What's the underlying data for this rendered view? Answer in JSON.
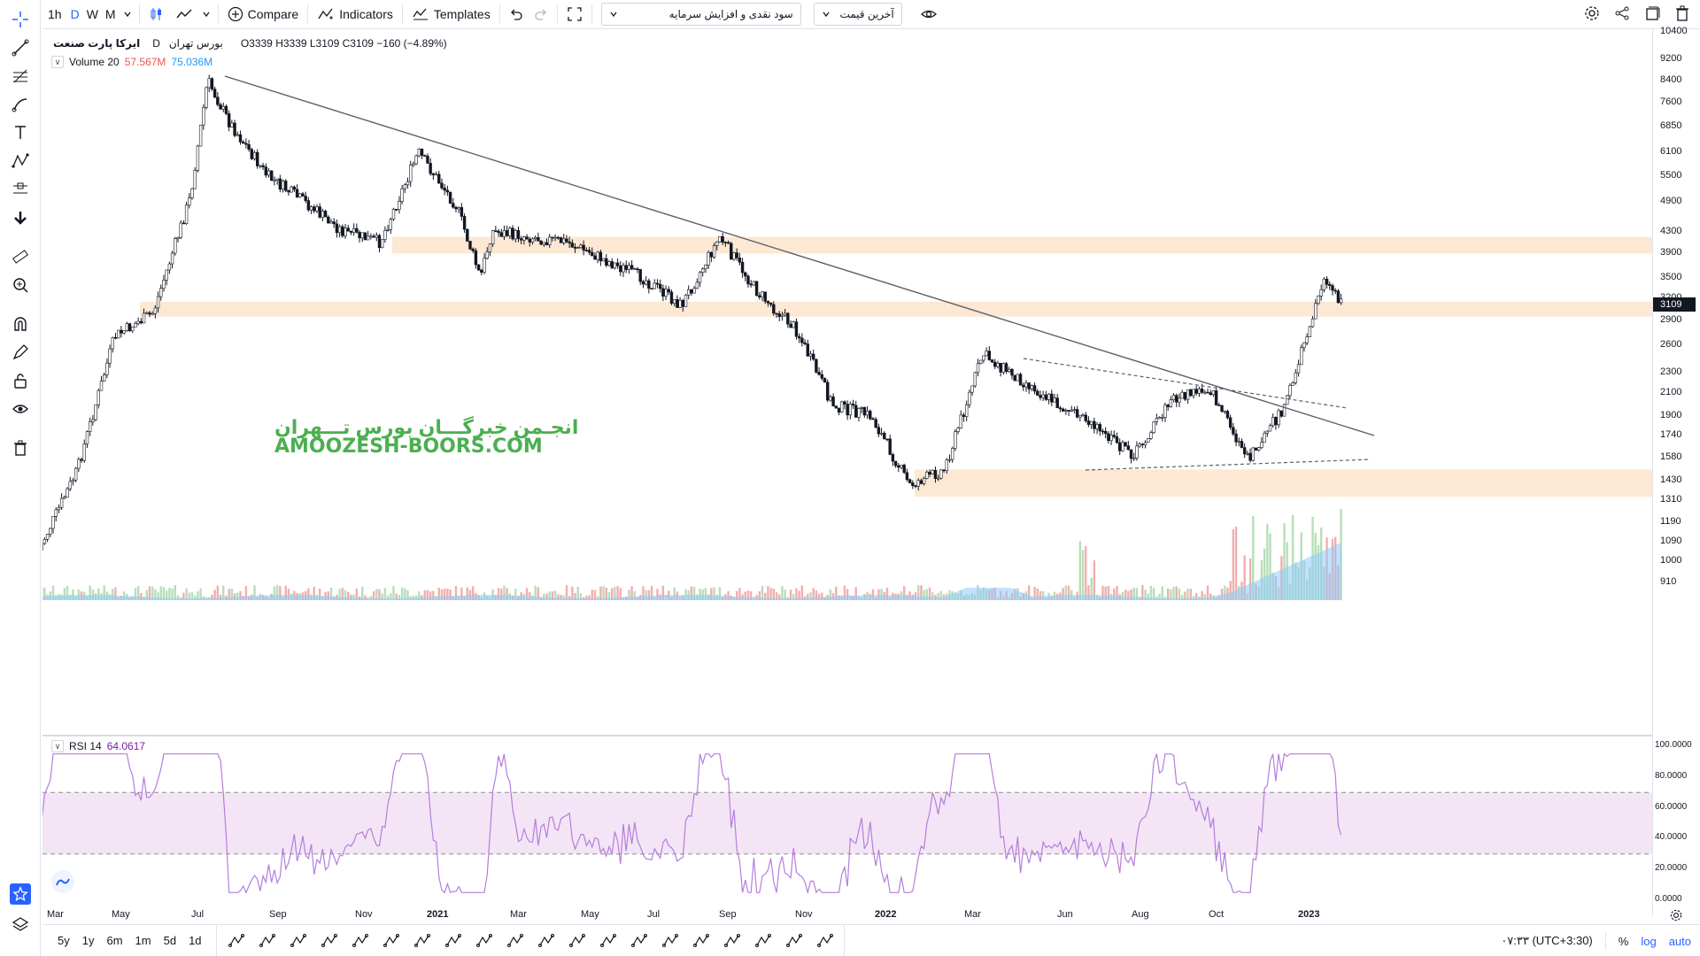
{
  "toolbar": {
    "timeframes": [
      "1h",
      "D",
      "W",
      "M"
    ],
    "active_timeframe": "D",
    "compare_label": "Compare",
    "indicators_label": "Indicators",
    "templates_label": "Templates",
    "symbol_selector": "سود نقدی و افزایش سرمایه",
    "price_selector": "آخرین قیمت"
  },
  "legend": {
    "symbol": "ایرکا پارت صنعت",
    "exchange": "بورس تهران",
    "interval": "D",
    "ohlc": "O3339 H3339 L3109 C3109 −160 (−4.89%)"
  },
  "volume_legend": {
    "label": "Volume 20",
    "value_red": "57.567M",
    "value_blue": "75.036M"
  },
  "rsi_legend": {
    "label": "RSI 14",
    "value": "64.0617"
  },
  "watermark": {
    "persian": "انجـمن خبرگـــان بورس تـــهران",
    "english": "AMOOZESH-BOORS.COM"
  },
  "price_scale": {
    "labels": [
      "10400",
      "9200",
      "8400",
      "7600",
      "6850",
      "6100",
      "5500",
      "4900",
      "4300",
      "3900",
      "3500",
      "3200",
      "2900",
      "2600",
      "2300",
      "2100",
      "1900",
      "1740",
      "1580",
      "1430",
      "1310",
      "1190",
      "1090",
      "1000",
      "910"
    ],
    "last_price": "3109"
  },
  "rsi_scale": {
    "labels": [
      "100.0000",
      "80.0000",
      "60.0000",
      "40.0000",
      "20.0000",
      "0.0000"
    ]
  },
  "time_axis": {
    "labels": [
      "Mar",
      "May",
      "Jul",
      "Sep",
      "Nov",
      "2021",
      "Mar",
      "May",
      "Jul",
      "Sep",
      "Nov",
      "2022",
      "Mar",
      "Jun",
      "Aug",
      "Oct",
      "2023"
    ]
  },
  "bottom_bar": {
    "ranges": [
      "5y",
      "1y",
      "6m",
      "1m",
      "5d",
      "1d"
    ],
    "clock": "۰۷:۳۳ (UTC+3:30)",
    "percent": "%",
    "log": "log",
    "auto": "auto"
  },
  "colors": {
    "up": "#26a69a",
    "down": "#ef5350",
    "accent": "#2962ff",
    "zone": "#fde8d4",
    "rsi_line": "#b57edc",
    "rsi_band": "#f3e5f5",
    "volume_ma": "#90caf9"
  },
  "chart_data": {
    "type": "candlestick",
    "price_scale": "log",
    "last_price": 3109,
    "resistance_support_zones": [
      [
        3900,
        4200
      ],
      [
        2950,
        3150
      ],
      [
        1330,
        1500
      ]
    ],
    "trendline": {
      "from": {
        "date": "2020-07",
        "price": 8700
      },
      "to": {
        "date": "2023-01",
        "price": 1740
      }
    },
    "close_series": [
      {
        "date": "2020-03",
        "price": 1050
      },
      {
        "date": "2020-04",
        "price": 1500
      },
      {
        "date": "2020-05",
        "price": 2700
      },
      {
        "date": "2020-06",
        "price": 3000
      },
      {
        "date": "2020-07",
        "price": 5000
      },
      {
        "date": "2020-07-15",
        "price": 8400
      },
      {
        "date": "2020-08",
        "price": 7000
      },
      {
        "date": "2020-09",
        "price": 5500
      },
      {
        "date": "2020-10",
        "price": 4900
      },
      {
        "date": "2020-11",
        "price": 4300
      },
      {
        "date": "2020-12",
        "price": 4100
      },
      {
        "date": "2021-01",
        "price": 6100
      },
      {
        "date": "2021-02",
        "price": 4800
      },
      {
        "date": "2021-02-20",
        "price": 3500
      },
      {
        "date": "2021-03",
        "price": 4300
      },
      {
        "date": "2021-05",
        "price": 4100
      },
      {
        "date": "2021-07",
        "price": 3500
      },
      {
        "date": "2021-08",
        "price": 3100
      },
      {
        "date": "2021-09",
        "price": 4200
      },
      {
        "date": "2021-10",
        "price": 3300
      },
      {
        "date": "2021-11",
        "price": 2800
      },
      {
        "date": "2021-12",
        "price": 2000
      },
      {
        "date": "2022-01",
        "price": 1900
      },
      {
        "date": "2022-02",
        "price": 1400
      },
      {
        "date": "2022-03",
        "price": 1500
      },
      {
        "date": "2022-04",
        "price": 2500
      },
      {
        "date": "2022-06",
        "price": 2000
      },
      {
        "date": "2022-08",
        "price": 1600
      },
      {
        "date": "2022-09",
        "price": 2050
      },
      {
        "date": "2022-10",
        "price": 2150
      },
      {
        "date": "2022-11",
        "price": 1560
      },
      {
        "date": "2022-12",
        "price": 2000
      },
      {
        "date": "2023-01",
        "price": 3500
      },
      {
        "date": "2023-01-15",
        "price": 3109
      }
    ],
    "rsi": {
      "period": 14,
      "last": 64.0617,
      "bands": [
        30,
        70
      ]
    }
  }
}
